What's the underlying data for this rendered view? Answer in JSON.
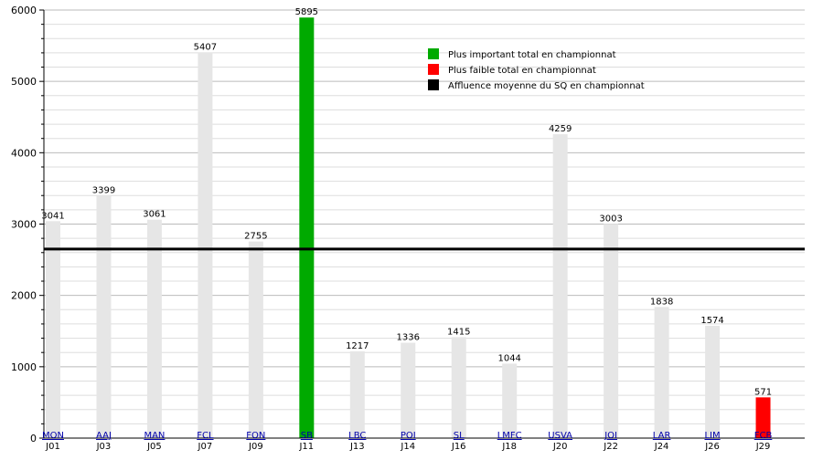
{
  "chart_data": {
    "type": "bar",
    "ylim": [
      0,
      6000
    ],
    "yticks": [
      0,
      1000,
      2000,
      3000,
      4000,
      5000,
      6000
    ],
    "categories": [
      "J01",
      "J03",
      "J05",
      "J07",
      "J09",
      "J11",
      "J13",
      "J14",
      "J16",
      "J18",
      "J20",
      "J22",
      "J24",
      "J26",
      "J29"
    ],
    "teams": [
      "MON",
      "AAJ",
      "MAN",
      "FCL",
      "FON",
      "SB",
      "LBC",
      "POI",
      "SL",
      "LMFC",
      "USVA",
      "JOI",
      "LAR",
      "LIM",
      "FCB"
    ],
    "values": [
      3041,
      3399,
      3061,
      5407,
      2755,
      5895,
      1217,
      1336,
      1415,
      1044,
      4259,
      3003,
      1838,
      1574,
      571
    ],
    "highlight": {
      "max_index": 5,
      "min_index": 14
    },
    "average": 2649,
    "grid": true,
    "legend_position": "top-right",
    "legend": [
      {
        "label": "Plus important total en championnat",
        "color": "#00aa00",
        "role": "max"
      },
      {
        "label": "Plus faible total en championnat",
        "color": "#ff0000",
        "role": "min"
      },
      {
        "label": "Affluence moyenne du SQ en championnat",
        "color": "#000000",
        "role": "average"
      }
    ],
    "colors": {
      "bar": "#e6e6e6",
      "max": "#00aa00",
      "min": "#ff0000",
      "average": "#000000",
      "team_label": "#0000aa"
    }
  }
}
